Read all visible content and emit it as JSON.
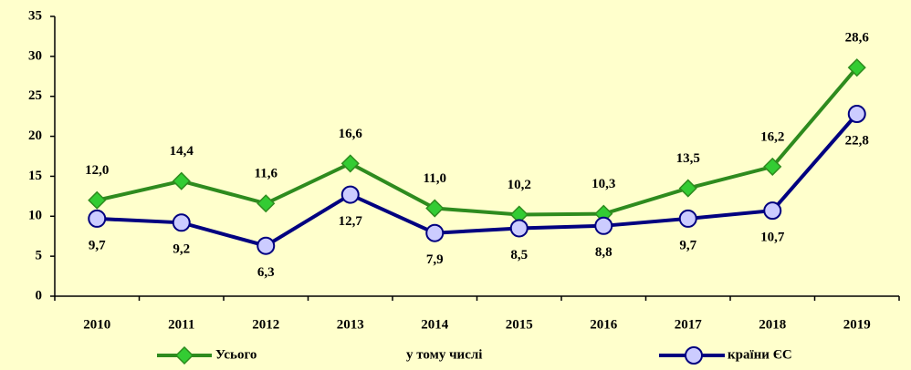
{
  "chart_data": {
    "type": "line",
    "categories": [
      "2010",
      "2011",
      "2012",
      "2013",
      "2014",
      "2015",
      "2016",
      "2017",
      "2018",
      "2019"
    ],
    "series": [
      {
        "name": "Усього",
        "color": "#2e8b1e",
        "marker_color": "#33cc33",
        "marker": "diamond",
        "values": [
          12.0,
          14.4,
          11.6,
          16.6,
          11.0,
          10.2,
          10.3,
          13.5,
          16.2,
          28.6
        ],
        "value_labels": [
          "12,0",
          "14,4",
          "11,6",
          "16,6",
          "11,0",
          "10,2",
          "10,3",
          "13,5",
          "16,2",
          "28,6"
        ]
      },
      {
        "name": "країни ЄС",
        "color": "#000080",
        "marker_color": "#ccccff",
        "marker": "circle",
        "values": [
          9.7,
          9.2,
          6.3,
          12.7,
          7.9,
          8.5,
          8.8,
          9.7,
          10.7,
          22.8
        ],
        "value_labels": [
          "9,7",
          "9,2",
          "6,3",
          "12,7",
          "7,9",
          "8,5",
          "8,8",
          "9,7",
          "10,7",
          "22,8"
        ]
      }
    ],
    "legend_note": "у тому числі",
    "ylim": [
      0,
      35
    ],
    "yticks": [
      0,
      5,
      10,
      15,
      20,
      25,
      30,
      35
    ],
    "grid": false,
    "legend": "bottom"
  }
}
